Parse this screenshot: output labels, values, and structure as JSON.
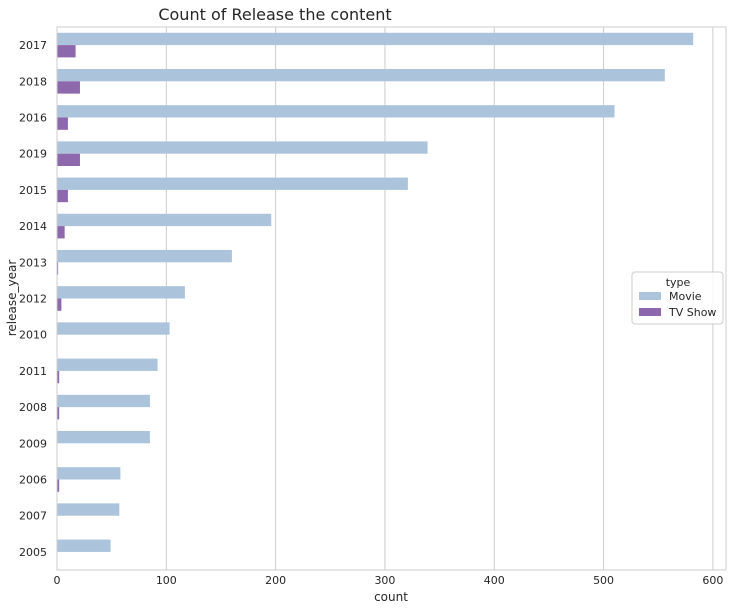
{
  "chart_data": {
    "type": "bar",
    "orientation": "horizontal",
    "title": "Count of Release the content",
    "xlabel": "count",
    "ylabel": "release_year",
    "xlim": [
      0,
      612
    ],
    "xticks": [
      0,
      100,
      200,
      300,
      400,
      500,
      600
    ],
    "grid": true,
    "categories": [
      "2017",
      "2018",
      "2016",
      "2019",
      "2015",
      "2014",
      "2013",
      "2012",
      "2010",
      "2011",
      "2008",
      "2009",
      "2006",
      "2007",
      "2005"
    ],
    "legend": {
      "title": "type",
      "placement": "center-right"
    },
    "series": [
      {
        "name": "Movie",
        "color": "#abc4db",
        "values": [
          582,
          556,
          510,
          339,
          321,
          196,
          160,
          117,
          103,
          92,
          85,
          85,
          58,
          57,
          49
        ]
      },
      {
        "name": "TV Show",
        "color": "#8e68ac",
        "values": [
          17,
          21,
          10,
          21,
          10,
          7,
          1,
          4,
          0,
          2,
          2,
          0,
          2,
          0,
          0
        ]
      }
    ]
  }
}
